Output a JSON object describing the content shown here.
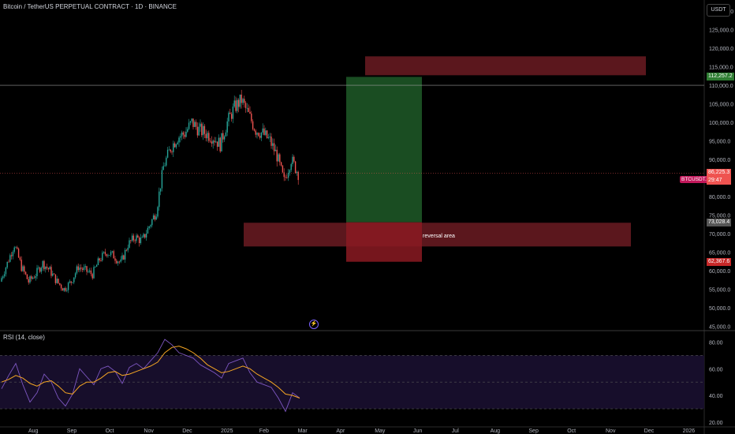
{
  "header": {
    "title": "Bitcoin / TetherUS PERPETUAL CONTRACT · 1D · BINANCE",
    "currency": "USDT"
  },
  "chart_data": [
    {
      "type": "candlestick",
      "ylim": [
        44000,
        133000
      ],
      "y_ticks": [
        45000,
        50000,
        55000,
        60000,
        65000,
        70000,
        75000,
        80000,
        85000,
        90000,
        95000,
        100000,
        105000,
        110000,
        115000,
        120000,
        125000,
        130000
      ],
      "y_tick_labels": [
        "45,000.0",
        "50,000.0",
        "55,000.0",
        "60,000.0",
        "65,000.0",
        "70,000.0",
        "75,000.0",
        "80,000.0",
        "85,000.0",
        "90,000.0",
        "95,000.0",
        "100,000.0",
        "105,000.0",
        "110,000.0",
        "115,000.0",
        "120,000.0",
        "125,000.0",
        "130,000.0"
      ],
      "x_tick_labels": [
        "Aug",
        "Sep",
        "Oct",
        "Nov",
        "Dec",
        "2025",
        "Feb",
        "Mar",
        "Apr",
        "May",
        "Jun",
        "Jul",
        "Aug",
        "Sep",
        "Oct",
        "Nov",
        "Dec",
        "2026"
      ],
      "weekly_close": [
        57000,
        62000,
        67000,
        61000,
        57000,
        59000,
        62000,
        60000,
        57000,
        55000,
        57000,
        61000,
        60000,
        59000,
        63000,
        65000,
        64000,
        62000,
        67000,
        69000,
        68000,
        72000,
        76000,
        88000,
        93000,
        96000,
        97000,
        100000,
        98000,
        97000,
        96000,
        94000,
        100000,
        104000,
        106000,
        102000,
        98000,
        97000,
        95000,
        91000,
        84000,
        90000,
        86225
      ],
      "last_price": "86,225.3",
      "countdown": "29:47",
      "symbol_tag": "BTCUSDT.P",
      "annotations": {
        "reversal_area_label": "reversal area",
        "target_price": "112,257.2",
        "entry_price": "73,028.4",
        "stop_price": "62,367.6",
        "target_level": 112257.2,
        "entry_level": 73028.4,
        "stop_level": 62367.6,
        "resistance_level": 110000,
        "top_zone": [
          112700,
          117800
        ],
        "reversal_zone": [
          66500,
          72900
        ]
      },
      "colors": {
        "up": "#26a69a",
        "down": "#ef5350",
        "target_tag": "#2e7d32",
        "stop_tag": "#c62828",
        "entry_tag": "#555555",
        "price_tag": "#ef5350"
      }
    },
    {
      "type": "line",
      "title": "RSI (14, close)",
      "ylim": [
        17,
        88
      ],
      "y_ticks": [
        20,
        40,
        60,
        80
      ],
      "y_tick_labels": [
        "20.00",
        "40.00",
        "60.00",
        "80.00"
      ],
      "band": [
        30,
        70
      ],
      "mid": 50,
      "series": [
        {
          "values": [
            45,
            55,
            64,
            48,
            35,
            42,
            56,
            50,
            38,
            32,
            41,
            60,
            54,
            48,
            60,
            62,
            58,
            49,
            61,
            64,
            60,
            66,
            72,
            82,
            78,
            72,
            70,
            68,
            63,
            60,
            57,
            53,
            64,
            66,
            68,
            57,
            50,
            48,
            46,
            38,
            28,
            42,
            38
          ]
        },
        {
          "values": [
            50,
            52,
            55,
            53,
            49,
            47,
            50,
            51,
            47,
            42,
            41,
            47,
            50,
            50,
            53,
            57,
            58,
            55,
            56,
            58,
            60,
            62,
            65,
            72,
            76,
            77,
            75,
            72,
            68,
            63,
            60,
            57,
            58,
            60,
            62,
            60,
            56,
            53,
            50,
            46,
            41,
            40,
            38
          ]
        }
      ],
      "colors": {
        "rsi": "#7e57c2",
        "ma": "#f5a623"
      }
    }
  ]
}
